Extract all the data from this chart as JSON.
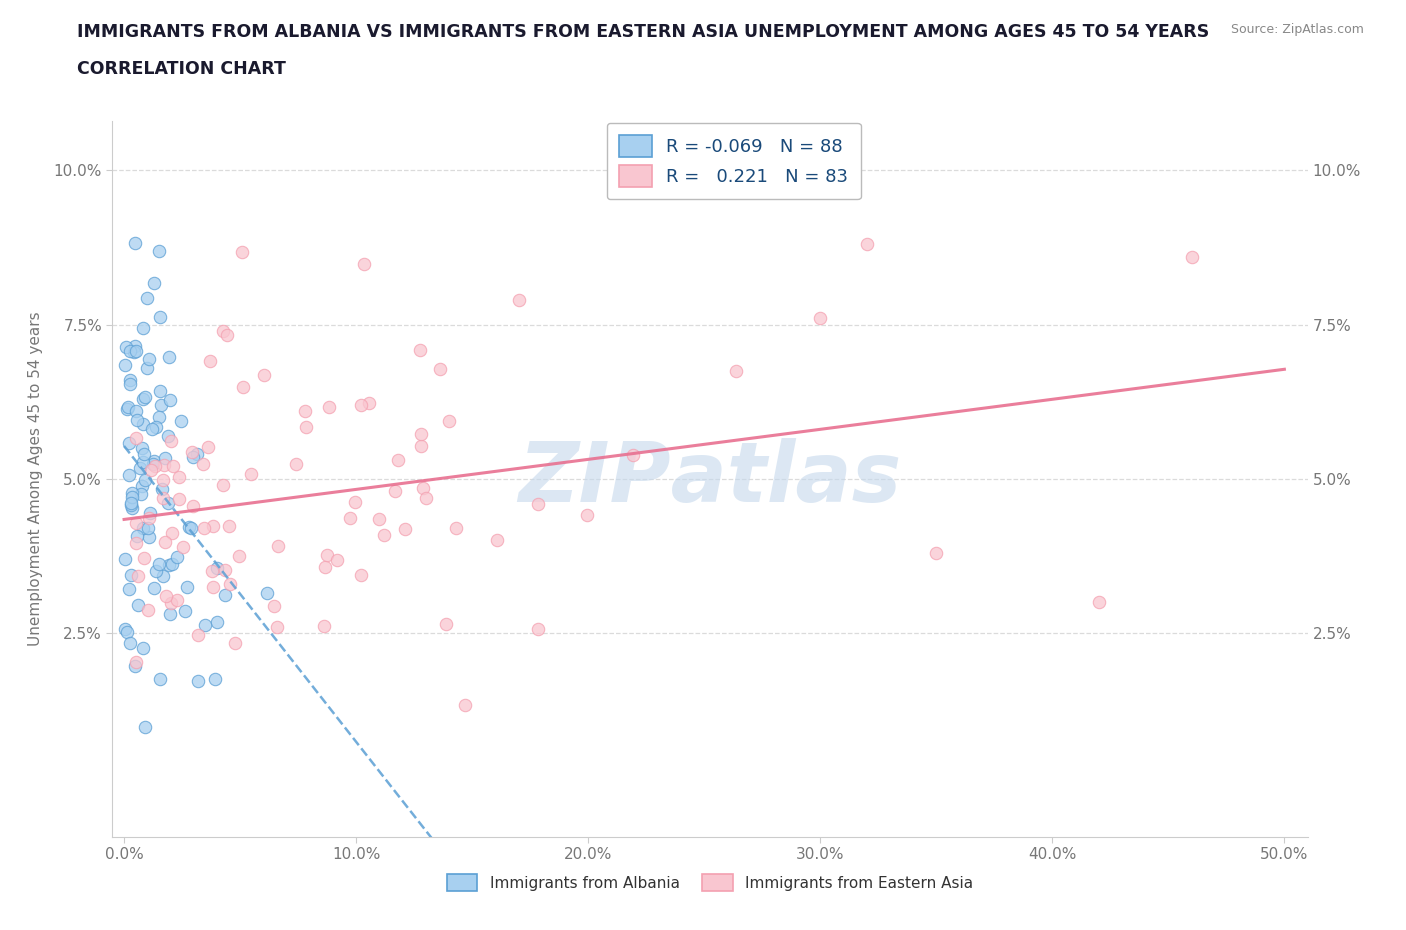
{
  "title_line1": "IMMIGRANTS FROM ALBANIA VS IMMIGRANTS FROM EASTERN ASIA UNEMPLOYMENT AMONG AGES 45 TO 54 YEARS",
  "title_line2": "CORRELATION CHART",
  "source": "Source: ZipAtlas.com",
  "ylabel": "Unemployment Among Ages 45 to 54 years",
  "xlim": [
    -0.005,
    0.51
  ],
  "ylim": [
    -0.008,
    0.108
  ],
  "xticks": [
    0.0,
    0.1,
    0.2,
    0.3,
    0.4,
    0.5
  ],
  "xticklabels": [
    "0.0%",
    "10.0%",
    "20.0%",
    "30.0%",
    "40.0%",
    "50.0%"
  ],
  "yticks": [
    0.025,
    0.05,
    0.075,
    0.1
  ],
  "yticklabels": [
    "2.5%",
    "5.0%",
    "7.5%",
    "10.0%"
  ],
  "albania_scatter_color": "#a8d0f0",
  "albania_edge_color": "#5b9fd4",
  "eastern_scatter_color": "#f9c6d0",
  "eastern_edge_color": "#f4a0b0",
  "albania_trend_color": "#5b9fd4",
  "eastern_trend_color": "#e87090",
  "legend_albania_R": "-0.069",
  "legend_albania_N": "88",
  "legend_eastern_asia_R": "0.221",
  "legend_eastern_asia_N": "83",
  "watermark": "ZIPatlas",
  "watermark_color": "#c5d8ec",
  "grid_color": "#d8d8d8",
  "title_color": "#1a1a2e",
  "axis_color": "#777777",
  "source_color": "#888888"
}
